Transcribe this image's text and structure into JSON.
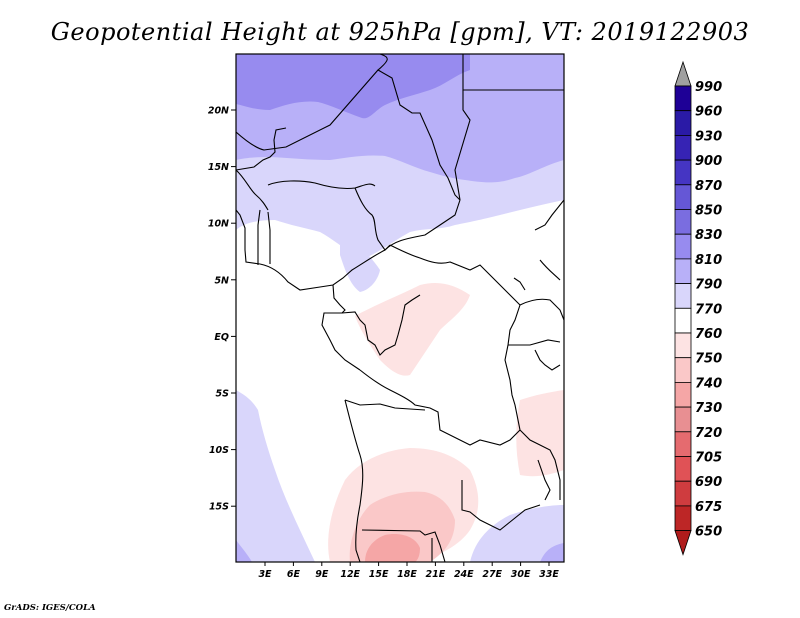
{
  "title": "Geopotential Height at 925hPa [gpm], VT: 2019122903",
  "credit": "GrADS: IGES/COLA",
  "map": {
    "variable": "Geopotential Height",
    "level": "925hPa",
    "units": "gpm",
    "valid_time": "2019122903",
    "lat_ticks": [
      "20N",
      "15N",
      "10N",
      "5N",
      "EQ",
      "5S",
      "10S",
      "15S"
    ],
    "lon_ticks": [
      "3E",
      "6E",
      "9E",
      "12E",
      "15E",
      "18E",
      "21E",
      "24E",
      "27E",
      "30E",
      "33E"
    ]
  },
  "colorbar": {
    "levels": [
      "990",
      "960",
      "930",
      "900",
      "870",
      "850",
      "830",
      "810",
      "790",
      "770",
      "760",
      "750",
      "740",
      "730",
      "720",
      "705",
      "690",
      "675",
      "650"
    ],
    "colors": [
      "#1e0096",
      "#2a1aa6",
      "#3623b4",
      "#4535c3",
      "#6557d6",
      "#7a6de0",
      "#978bef",
      "#b8b0f8",
      "#d9d6fb",
      "#ffffff",
      "#fde3e3",
      "#fac8c8",
      "#f5a6a6",
      "#e88f92",
      "#e56b6f",
      "#e05256",
      "#cf3c3f",
      "#bd2626"
    ],
    "top_arrow_color": "#a0a0a0",
    "bottom_arrow_color": "#b01c1c"
  }
}
